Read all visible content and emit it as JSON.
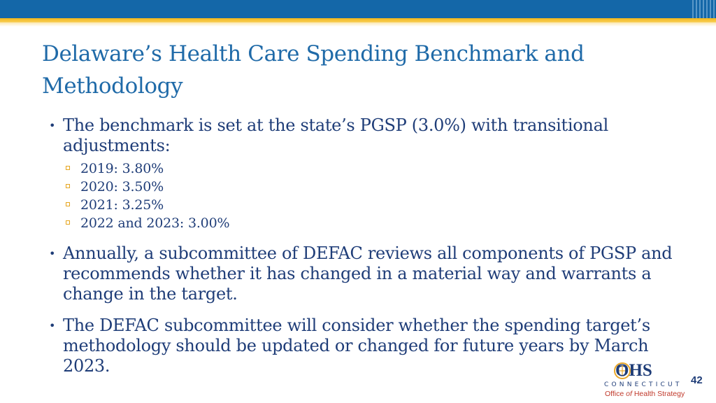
{
  "slide": {
    "title": "Delaware’s Health Care Spending Benchmark and Methodology",
    "page_number": "42"
  },
  "bullets": [
    {
      "text": "The benchmark is set at the state’s PGSP (3.0%) with transitional adjustments:",
      "sub_items": [
        "2019: 3.80%",
        "2020: 3.50%",
        "2021: 3.25%",
        "2022 and 2023: 3.00%"
      ]
    },
    {
      "text": "Annually, a subcommittee of DEFAC reviews all components of PGSP and recommends whether it has changed in a material way and warrants a change in the target."
    },
    {
      "text": "The DEFAC subcommittee will consider whether the spending target’s methodology should be updated or changed for future years by March 2023."
    }
  ],
  "logo": {
    "abbreviation": "OHS",
    "state": "CONNECTICUT",
    "office_prefix": "Office",
    "office_of": "of",
    "office_suffix": "Health Strategy"
  },
  "bullet_marker": "•",
  "colors": {
    "header_blue": "#1467a8",
    "accent_gold": "#f3b71b",
    "title_blue": "#1f6aa8",
    "body_navy": "#1f3d78",
    "logo_red": "#c0392b"
  }
}
